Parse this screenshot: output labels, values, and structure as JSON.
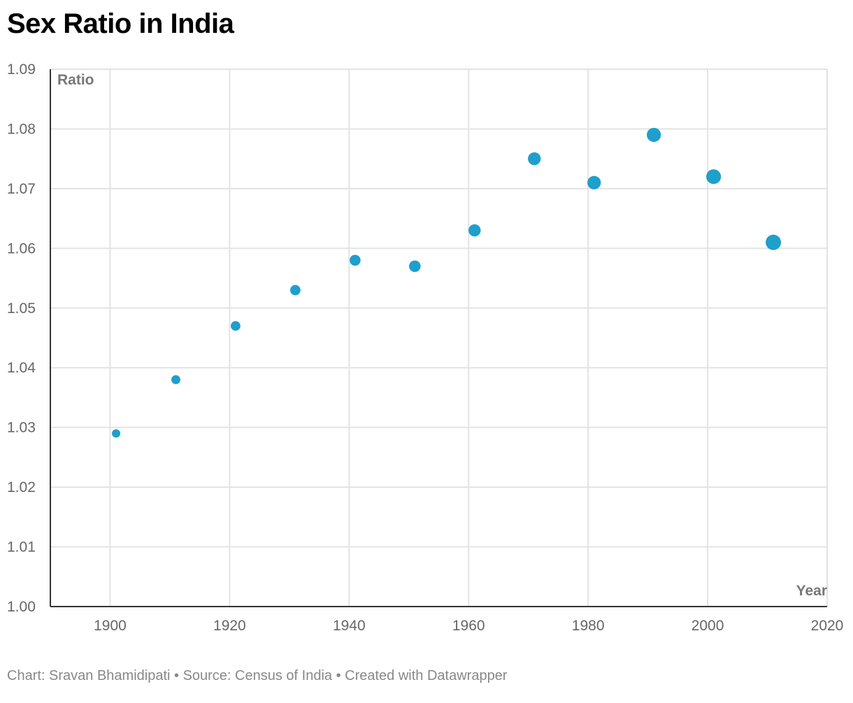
{
  "title": "Sex Ratio in India",
  "footer": "Chart: Sravan Bhamidipati • Source: Census of India • Created with Datawrapper",
  "chart_data": {
    "type": "scatter",
    "xlabel": "Year",
    "ylabel": "Ratio",
    "xlim": [
      1890,
      2020
    ],
    "ylim": [
      1.0,
      1.09
    ],
    "x_ticks": [
      "1900",
      "1920",
      "1940",
      "1960",
      "1980",
      "2000",
      "2020"
    ],
    "y_ticks": [
      "1.00",
      "1.01",
      "1.02",
      "1.03",
      "1.04",
      "1.05",
      "1.06",
      "1.07",
      "1.08",
      "1.09"
    ],
    "grid": true,
    "marker_color": "#1f9fcc",
    "points": [
      {
        "x": 1901,
        "y": 1.029
      },
      {
        "x": 1911,
        "y": 1.038
      },
      {
        "x": 1921,
        "y": 1.047
      },
      {
        "x": 1931,
        "y": 1.053
      },
      {
        "x": 1941,
        "y": 1.058
      },
      {
        "x": 1951,
        "y": 1.057
      },
      {
        "x": 1961,
        "y": 1.063
      },
      {
        "x": 1971,
        "y": 1.075
      },
      {
        "x": 1981,
        "y": 1.071
      },
      {
        "x": 1991,
        "y": 1.079
      },
      {
        "x": 2001,
        "y": 1.072
      },
      {
        "x": 2011,
        "y": 1.061
      }
    ]
  }
}
